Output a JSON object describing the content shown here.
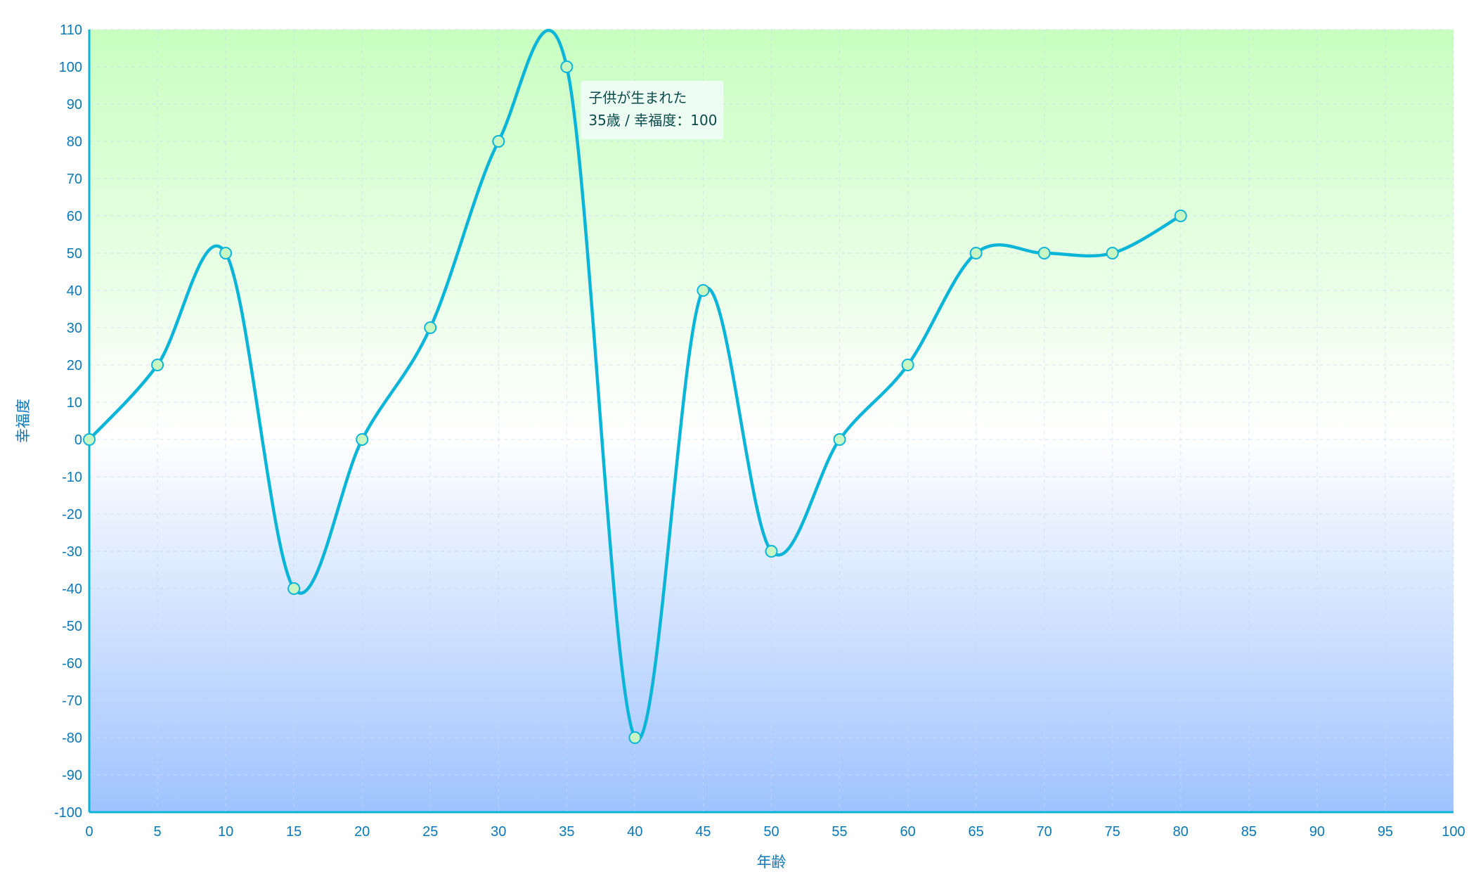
{
  "chart_data": {
    "type": "line",
    "xlabel": "年齢",
    "ylabel": "幸福度",
    "xlim": [
      0,
      100
    ],
    "ylim": [
      -100,
      110
    ],
    "xticks": [
      0,
      5,
      10,
      15,
      20,
      25,
      30,
      35,
      40,
      45,
      50,
      55,
      60,
      65,
      70,
      75,
      80,
      85,
      90,
      95,
      100
    ],
    "yticks": [
      -100,
      -90,
      -80,
      -70,
      -60,
      -50,
      -40,
      -30,
      -20,
      -10,
      0,
      10,
      20,
      30,
      40,
      50,
      60,
      70,
      80,
      90,
      100,
      110
    ],
    "grid": true,
    "smooth": true,
    "series": [
      {
        "points": [
          {
            "x": 0,
            "y": 0
          },
          {
            "x": 5,
            "y": 20
          },
          {
            "x": 10,
            "y": 50
          },
          {
            "x": 15,
            "y": -40
          },
          {
            "x": 20,
            "y": 0
          },
          {
            "x": 25,
            "y": 30
          },
          {
            "x": 30,
            "y": 80
          },
          {
            "x": 35,
            "y": 100
          },
          {
            "x": 40,
            "y": -80
          },
          {
            "x": 45,
            "y": 40
          },
          {
            "x": 50,
            "y": -30
          },
          {
            "x": 55,
            "y": 0
          },
          {
            "x": 60,
            "y": 20
          },
          {
            "x": 65,
            "y": 50
          },
          {
            "x": 70,
            "y": 50
          },
          {
            "x": 75,
            "y": 50
          },
          {
            "x": 80,
            "y": 60
          }
        ]
      }
    ],
    "tooltip": {
      "x": 35,
      "line1": "子供が生まれた",
      "line2": "35歳 / 幸福度：100"
    },
    "colors": {
      "line": "#0bb5d8",
      "axis": "#0bb5d8",
      "marker_fill": "#c9f7c4",
      "marker_stroke": "#0bb5d8",
      "gradient_top": "#c8ffc0",
      "gradient_mid": "#ffffff",
      "gradient_bottom": "#9fc3ff",
      "label": "#0a77b7"
    }
  }
}
